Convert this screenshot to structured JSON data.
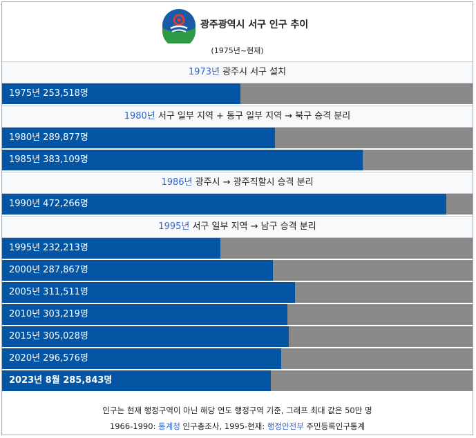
{
  "header": {
    "title": "광주광역시 서구 인구 추이",
    "subtitle": "(1975년~현재)"
  },
  "colors": {
    "bar": "#0456a4",
    "track": "#8a8a8a",
    "link": "#3366cc",
    "logo_blue": "#1a5aa6",
    "logo_green": "#2e9a46",
    "logo_red": "#e03a2c"
  },
  "chart_data": {
    "type": "bar",
    "orientation": "horizontal",
    "title": "광주광역시 서구 인구 추이",
    "subtitle": "(1975년~현재)",
    "xlim": [
      0,
      500000
    ],
    "rows": [
      {
        "kind": "note",
        "year": "1973년",
        "text": " 광주시 서구 설치"
      },
      {
        "kind": "bar",
        "label": "1975년 253,518명",
        "value": 253518
      },
      {
        "kind": "note",
        "year": "1980년",
        "text": " 서구 일부 지역 + 동구 일부 지역 → 북구 승격 분리"
      },
      {
        "kind": "bar",
        "label": "1980년 289,877명",
        "value": 289877
      },
      {
        "kind": "bar",
        "label": "1985년 383,109명",
        "value": 383109
      },
      {
        "kind": "note",
        "year": "1986년",
        "text": " 광주시 → 광주직할시 승격 분리"
      },
      {
        "kind": "bar",
        "label": "1990년 472,266명",
        "value": 472266
      },
      {
        "kind": "note",
        "year": "1995년",
        "text": " 서구 일부 지역 → 남구 승격 분리"
      },
      {
        "kind": "bar",
        "label": "1995년 232,213명",
        "value": 232213
      },
      {
        "kind": "bar",
        "label": "2000년 287,867명",
        "value": 287867
      },
      {
        "kind": "bar",
        "label": "2005년 311,511명",
        "value": 311511
      },
      {
        "kind": "bar",
        "label": "2010년 303,219명",
        "value": 303219
      },
      {
        "kind": "bar",
        "label": "2015년 305,028명",
        "value": 305028
      },
      {
        "kind": "bar",
        "label": "2020년 296,576명",
        "value": 296576
      },
      {
        "kind": "bar",
        "label": "2023년 8월 285,843명",
        "value": 285843,
        "bold": true
      }
    ]
  },
  "footer": {
    "line1": "인구는 현재 행정구역이 아닌 해당 연도 행정구역 기준, 그래프 최대 값은 50만 명",
    "line2_prefix": "1966-1990: ",
    "line2_link1": "통계청",
    "line2_mid": " 인구총조사, 1995-현재: ",
    "line2_link2": "행정안전부",
    "line2_suffix": " 주민등록인구통계"
  }
}
